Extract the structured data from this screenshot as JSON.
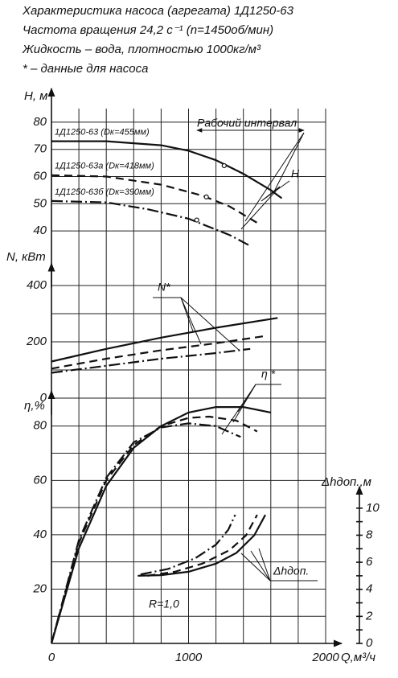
{
  "header": {
    "lines": [
      "Характеристика насоса (агрегата) 1Д1250-63",
      "Частота вращения 24,2 с⁻¹ (n=1450об/мин)",
      "Жидкость – вода, плотностью 1000кг/м³",
      "* – данные для насоса"
    ]
  },
  "chart_data": [
    {
      "type": "line",
      "y_label": "Н, м",
      "ylim": [
        35,
        85
      ],
      "yticks": [
        40,
        50,
        60,
        70,
        80
      ],
      "annotations": [
        "Рабочий интервал",
        "Н"
      ],
      "series": [
        {
          "name": "1Д1250-63 (Dк=455мм)",
          "dash": "solid",
          "x": [
            0,
            400,
            800,
            1000,
            1200,
            1400,
            1600,
            1680
          ],
          "values": [
            73,
            73,
            71.5,
            69.5,
            66,
            61,
            55,
            52
          ],
          "marker": {
            "x": 1260,
            "y": 64
          }
        },
        {
          "name": "1Д1250-63а (Dк=418мм)",
          "dash": "dashed",
          "x": [
            0,
            400,
            800,
            1100,
            1300,
            1500
          ],
          "values": [
            60.5,
            60,
            57,
            53,
            49,
            43
          ],
          "marker": {
            "x": 1130,
            "y": 52.5
          }
        },
        {
          "name": "1Д1250-63б (Dк=390мм)",
          "dash": "dashdot",
          "x": [
            0,
            400,
            700,
            1000,
            1300,
            1450
          ],
          "values": [
            51,
            50.5,
            48,
            44.5,
            38.5,
            34.5
          ],
          "marker": {
            "x": 1060,
            "y": 44
          }
        }
      ]
    },
    {
      "type": "line",
      "y_label": "N, кВт",
      "ylim": [
        0,
        450
      ],
      "yticks": [
        0,
        200,
        400
      ],
      "minor_yticks": [
        100,
        300
      ],
      "annotations": [
        "N*"
      ],
      "series": [
        {
          "dash": "solid",
          "x": [
            0,
            400,
            800,
            1200,
            1650
          ],
          "values": [
            130,
            175,
            215,
            250,
            285
          ]
        },
        {
          "dash": "dashed",
          "x": [
            0,
            400,
            800,
            1200,
            1550
          ],
          "values": [
            105,
            140,
            170,
            195,
            220
          ]
        },
        {
          "dash": "dashdot",
          "x": [
            0,
            400,
            800,
            1200,
            1450
          ],
          "values": [
            90,
            115,
            140,
            160,
            175
          ]
        }
      ]
    },
    {
      "type": "line",
      "y_label": "η,%",
      "ylim": [
        0,
        90
      ],
      "yticks": [
        20,
        40,
        60,
        80
      ],
      "minor_yticks": [
        10,
        30,
        50,
        70
      ],
      "xlim": [
        0,
        2000
      ],
      "xticks": [
        0,
        1000,
        2000
      ],
      "minor_xticks": [
        200,
        400,
        600,
        800,
        1200,
        1400,
        1600,
        1800
      ],
      "x_label": "Q,м³/ч",
      "annotations": [
        "η *",
        "R=1,0"
      ],
      "series": [
        {
          "dash": "solid",
          "x": [
            0,
            200,
            400,
            600,
            800,
            1000,
            1200,
            1400,
            1600
          ],
          "values": [
            0,
            35,
            58,
            72,
            80,
            85,
            87,
            87,
            85
          ]
        },
        {
          "dash": "dashed",
          "x": [
            0,
            200,
            400,
            600,
            800,
            1000,
            1150,
            1350,
            1500
          ],
          "values": [
            0,
            37,
            60,
            73,
            80,
            83,
            83.5,
            82,
            78
          ]
        },
        {
          "dash": "dashdot",
          "x": [
            0,
            200,
            400,
            600,
            800,
            1000,
            1200,
            1380
          ],
          "values": [
            0,
            38,
            61,
            74,
            79.5,
            81,
            80,
            76
          ]
        }
      ]
    },
    {
      "type": "line",
      "y_label": "Δhдоп.,м",
      "ylim": [
        0,
        11
      ],
      "yticks": [
        0,
        2,
        4,
        6,
        8,
        10
      ],
      "minor_yticks": [
        1,
        3,
        5,
        7,
        9
      ],
      "annotations": [
        "Δhдоп."
      ],
      "series": [
        {
          "dash": "solid",
          "x": [
            630,
            800,
            1000,
            1200,
            1350,
            1480,
            1560
          ],
          "values": [
            5,
            5.05,
            5.3,
            5.9,
            6.7,
            8,
            9.5
          ]
        },
        {
          "dash": "dashed",
          "x": [
            700,
            900,
            1100,
            1300,
            1420,
            1500
          ],
          "values": [
            5,
            5.3,
            5.9,
            6.9,
            8,
            9.5
          ]
        },
        {
          "dash": "dashdot",
          "x": [
            650,
            850,
            1050,
            1200,
            1290,
            1340
          ],
          "values": [
            5.1,
            5.5,
            6.3,
            7.3,
            8.4,
            9.5
          ]
        }
      ]
    }
  ]
}
